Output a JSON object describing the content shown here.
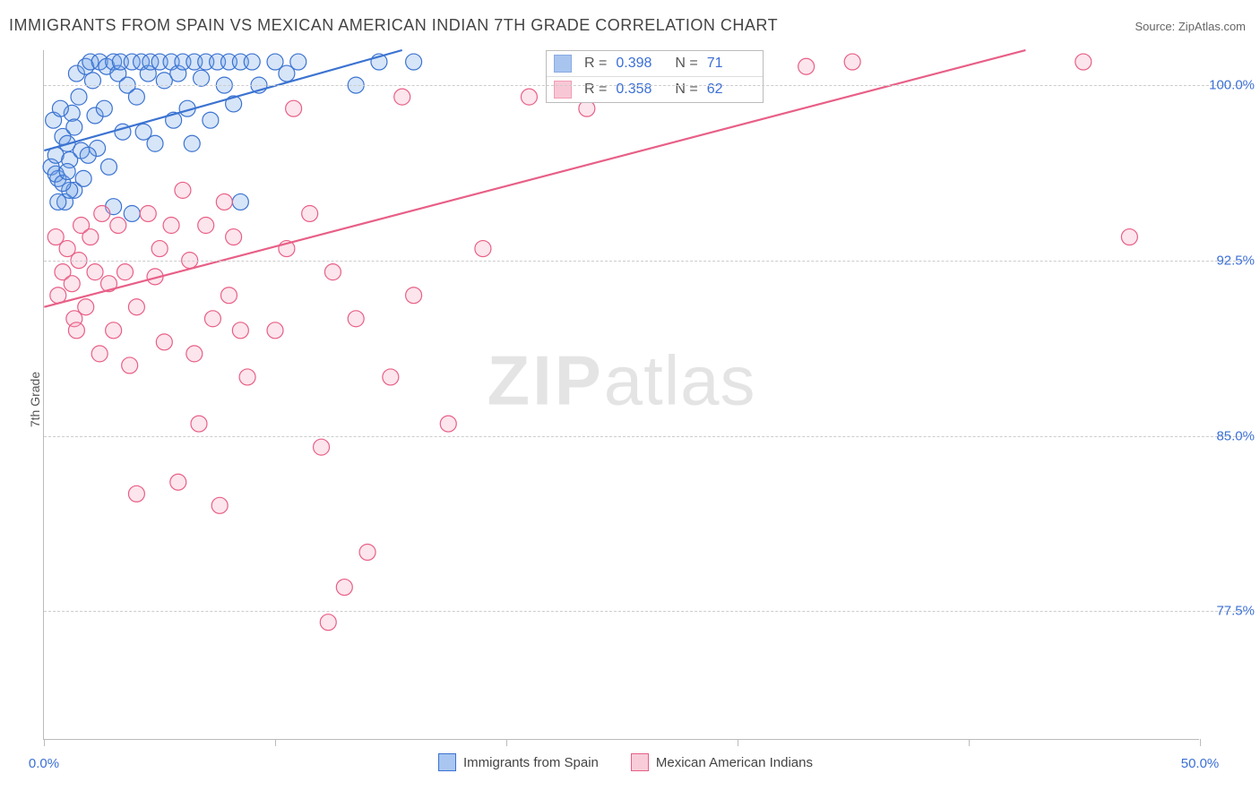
{
  "title": "IMMIGRANTS FROM SPAIN VS MEXICAN AMERICAN INDIAN 7TH GRADE CORRELATION CHART",
  "source_label": "Source: ZipAtlas.com",
  "yaxis_label": "7th Grade",
  "watermark": {
    "zip": "ZIP",
    "rest": "atlas"
  },
  "chart": {
    "type": "scatter",
    "xlim": [
      0,
      50
    ],
    "ylim": [
      72,
      101.5
    ],
    "x_ticks": [
      0,
      10,
      20,
      30,
      40,
      50
    ],
    "x_tick_labels": [
      "0.0%",
      "",
      "",
      "",
      "",
      "50.0%"
    ],
    "y_ticks": [
      77.5,
      85.0,
      92.5,
      100.0
    ],
    "y_tick_labels": [
      "77.5%",
      "85.0%",
      "92.5%",
      "100.0%"
    ],
    "grid_color": "#cccccc",
    "axis_color": "#bbbbbb",
    "background_color": "#ffffff",
    "tick_label_color": "#3b6fd6",
    "tick_label_fontsize": 15,
    "marker_radius": 9,
    "marker_stroke_width": 1.2,
    "marker_fill_opacity": 0.28,
    "line_width": 2.2,
    "series": [
      {
        "name": "Immigrants from Spain",
        "color_stroke": "#3b73d1",
        "color_fill": "#6fa0e6",
        "r": "0.398",
        "n": "71",
        "trend": {
          "x1": 0,
          "y1": 97.2,
          "x2": 15.5,
          "y2": 101.5
        },
        "points": [
          [
            0.3,
            96.5
          ],
          [
            0.5,
            97.0
          ],
          [
            0.6,
            96.0
          ],
          [
            0.8,
            97.8
          ],
          [
            0.4,
            98.5
          ],
          [
            0.5,
            96.2
          ],
          [
            1.0,
            97.5
          ],
          [
            1.1,
            96.8
          ],
          [
            1.2,
            98.8
          ],
          [
            1.3,
            95.5
          ],
          [
            1.4,
            100.5
          ],
          [
            1.5,
            99.5
          ],
          [
            1.6,
            97.2
          ],
          [
            1.7,
            96.0
          ],
          [
            0.9,
            95.0
          ],
          [
            1.1,
            95.5
          ],
          [
            0.7,
            99.0
          ],
          [
            1.8,
            100.8
          ],
          [
            2.0,
            101.0
          ],
          [
            2.1,
            100.2
          ],
          [
            2.2,
            98.7
          ],
          [
            2.3,
            97.3
          ],
          [
            2.4,
            101.0
          ],
          [
            2.6,
            99.0
          ],
          [
            2.7,
            100.8
          ],
          [
            2.8,
            96.5
          ],
          [
            3.0,
            101.0
          ],
          [
            3.2,
            100.5
          ],
          [
            3.4,
            98.0
          ],
          [
            3.3,
            101.0
          ],
          [
            3.6,
            100.0
          ],
          [
            3.8,
            101.0
          ],
          [
            4.0,
            99.5
          ],
          [
            4.2,
            101.0
          ],
          [
            4.3,
            98.0
          ],
          [
            4.5,
            100.5
          ],
          [
            4.6,
            101.0
          ],
          [
            4.8,
            97.5
          ],
          [
            5.0,
            101.0
          ],
          [
            5.2,
            100.2
          ],
          [
            5.5,
            101.0
          ],
          [
            5.6,
            98.5
          ],
          [
            5.8,
            100.5
          ],
          [
            6.0,
            101.0
          ],
          [
            6.2,
            99.0
          ],
          [
            6.4,
            97.5
          ],
          [
            6.5,
            101.0
          ],
          [
            6.8,
            100.3
          ],
          [
            7.0,
            101.0
          ],
          [
            7.2,
            98.5
          ],
          [
            7.5,
            101.0
          ],
          [
            7.8,
            100.0
          ],
          [
            8.0,
            101.0
          ],
          [
            8.2,
            99.2
          ],
          [
            8.5,
            101.0
          ],
          [
            0.6,
            95.0
          ],
          [
            0.8,
            95.8
          ],
          [
            1.0,
            96.3
          ],
          [
            1.3,
            98.2
          ],
          [
            1.9,
            97.0
          ],
          [
            3.0,
            94.8
          ],
          [
            3.8,
            94.5
          ],
          [
            8.5,
            95.0
          ],
          [
            9.0,
            101.0
          ],
          [
            9.3,
            100.0
          ],
          [
            10.0,
            101.0
          ],
          [
            10.5,
            100.5
          ],
          [
            11.0,
            101.0
          ],
          [
            13.5,
            100.0
          ],
          [
            14.5,
            101.0
          ],
          [
            16.0,
            101.0
          ]
        ]
      },
      {
        "name": "Mexican American Indians",
        "color_stroke": "#e85f87",
        "color_fill": "#f5a2ba",
        "r": "0.358",
        "n": "62",
        "trend": {
          "x1": 0,
          "y1": 90.5,
          "x2": 42.5,
          "y2": 101.5
        },
        "points": [
          [
            0.5,
            93.5
          ],
          [
            0.8,
            92.0
          ],
          [
            0.6,
            91.0
          ],
          [
            1.0,
            93.0
          ],
          [
            1.2,
            91.5
          ],
          [
            1.3,
            90.0
          ],
          [
            1.5,
            92.5
          ],
          [
            1.6,
            94.0
          ],
          [
            1.4,
            89.5
          ],
          [
            1.8,
            90.5
          ],
          [
            2.0,
            93.5
          ],
          [
            2.2,
            92.0
          ],
          [
            2.4,
            88.5
          ],
          [
            2.5,
            94.5
          ],
          [
            2.8,
            91.5
          ],
          [
            3.0,
            89.5
          ],
          [
            3.2,
            94.0
          ],
          [
            3.5,
            92.0
          ],
          [
            3.7,
            88.0
          ],
          [
            4.0,
            90.5
          ],
          [
            4.0,
            82.5
          ],
          [
            4.5,
            94.5
          ],
          [
            4.8,
            91.8
          ],
          [
            5.0,
            93.0
          ],
          [
            5.2,
            89.0
          ],
          [
            5.5,
            94.0
          ],
          [
            5.8,
            83.0
          ],
          [
            6.0,
            95.5
          ],
          [
            6.3,
            92.5
          ],
          [
            6.5,
            88.5
          ],
          [
            6.7,
            85.5
          ],
          [
            7.0,
            94.0
          ],
          [
            7.3,
            90.0
          ],
          [
            7.6,
            82.0
          ],
          [
            7.8,
            95.0
          ],
          [
            8.0,
            91.0
          ],
          [
            8.2,
            93.5
          ],
          [
            8.5,
            89.5
          ],
          [
            8.8,
            87.5
          ],
          [
            10.0,
            89.5
          ],
          [
            10.5,
            93.0
          ],
          [
            10.8,
            99.0
          ],
          [
            11.5,
            94.5
          ],
          [
            12.0,
            84.5
          ],
          [
            12.3,
            77.0
          ],
          [
            12.5,
            92.0
          ],
          [
            13.0,
            78.5
          ],
          [
            13.5,
            90.0
          ],
          [
            14.0,
            80.0
          ],
          [
            15.0,
            87.5
          ],
          [
            15.5,
            99.5
          ],
          [
            16.0,
            91.0
          ],
          [
            17.5,
            85.5
          ],
          [
            19.0,
            93.0
          ],
          [
            21.0,
            99.5
          ],
          [
            23.5,
            99.0
          ],
          [
            26.0,
            100.8
          ],
          [
            30.0,
            100.8
          ],
          [
            33.0,
            100.8
          ],
          [
            35.0,
            101.0
          ],
          [
            45.0,
            101.0
          ],
          [
            47.0,
            93.5
          ]
        ]
      }
    ],
    "legend_bottom": [
      {
        "label": "Immigrants from Spain",
        "stroke": "#3b73d1",
        "fill": "#a9c6f0"
      },
      {
        "label": "Mexican American Indians",
        "stroke": "#e85f87",
        "fill": "#f8cdd9"
      }
    ]
  }
}
